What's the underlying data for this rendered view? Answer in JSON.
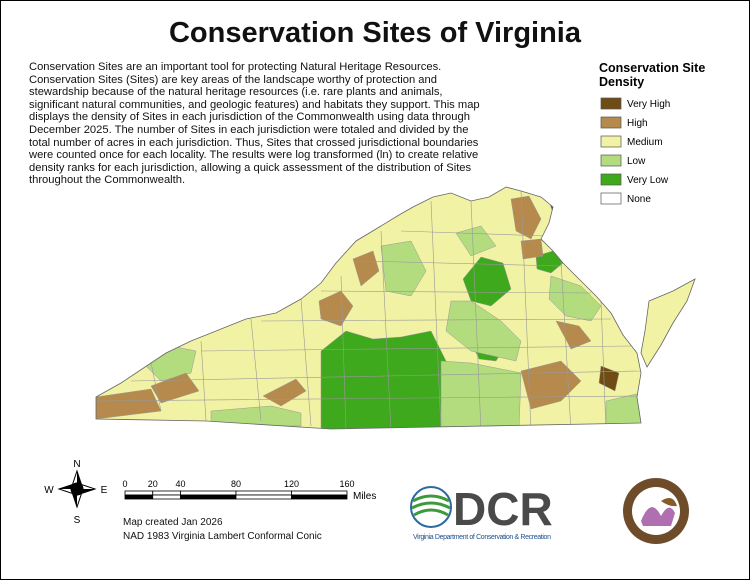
{
  "title": "Conservation Sites of Virginia",
  "description": "Conservation Sites are an important tool for protecting Natural Heritage Resources. Conservation Sites (Sites) are key areas of the landscape worthy of protection and stewardship because of the natural heritage resources (i.e. rare plants and animals, significant natural communities, and geologic features) and habitats they support. This map displays the density of Sites in each jurisdiction of the Commonwealth using data through December 2025. The number of Sites in each jurisdiction were totaled and divided by the total number of acres in each jurisdiction. Thus, Sites that crossed jurisdictional boundaries were counted once for each locality. The results were log transformed (ln) to create relative density ranks for each jurisdiction, allowing a quick assessment of the distribution of Sites throughout the Commonwealth.",
  "legend": {
    "title": "Conservation Site Density",
    "items": [
      {
        "label": "Very High",
        "color": "#6e4c14"
      },
      {
        "label": "High",
        "color": "#b58a4c"
      },
      {
        "label": "Medium",
        "color": "#f2f2a4"
      },
      {
        "label": "Low",
        "color": "#b2dc7e"
      },
      {
        "label": "Very Low",
        "color": "#3ea91c"
      },
      {
        "label": "None",
        "color": "#ffffff"
      }
    ]
  },
  "compass": {
    "north": "N",
    "south": "S",
    "east": "E",
    "west": "W"
  },
  "scale_bar": {
    "ticks": [
      0,
      20,
      40,
      80,
      120,
      160
    ],
    "unit": "Miles"
  },
  "credits": [
    "Map created Jan 2026",
    "NAD 1983 Virginia Lambert Conformal Conic"
  ],
  "logo": {
    "text": "DCR",
    "subtitle": "Virginia Department of Conservation & Recreation"
  }
}
